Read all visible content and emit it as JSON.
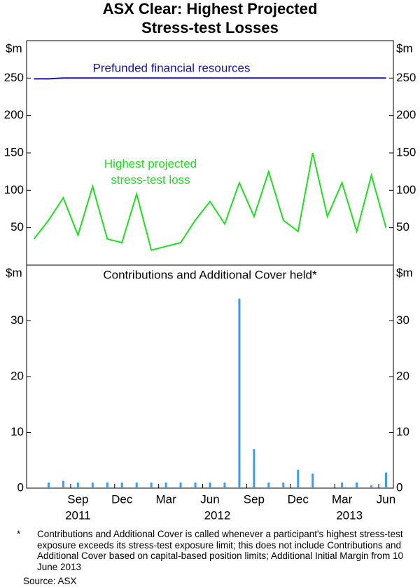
{
  "title": "ASX Clear: Highest Projected Stress-test Losses",
  "chart_data": [
    {
      "type": "line",
      "y_unit": "$m",
      "x": [
        "2011-06",
        "2011-07",
        "2011-08",
        "2011-09",
        "2011-10",
        "2011-11",
        "2011-12",
        "2012-01",
        "2012-02",
        "2012-03",
        "2012-04",
        "2012-05",
        "2012-06",
        "2012-07",
        "2012-08",
        "2012-09",
        "2012-10",
        "2012-11",
        "2012-12",
        "2013-01",
        "2013-02",
        "2013-03",
        "2013-04",
        "2013-05",
        "2013-06"
      ],
      "xlim": [
        "2011-06",
        "2013-06"
      ],
      "ylim": [
        0,
        300
      ],
      "yticks": [
        50,
        100,
        150,
        200,
        250
      ],
      "series": [
        {
          "name": "Prefunded financial resources",
          "color": "#1414b4",
          "values": [
            249,
            249,
            250,
            250,
            250,
            250,
            250,
            250,
            250,
            250,
            250,
            250,
            250,
            250,
            250,
            250,
            250,
            250,
            250,
            250,
            250,
            250,
            250,
            250,
            250
          ]
        },
        {
          "name": "Highest projected stress-test loss",
          "color": "#22dd22",
          "values": [
            35,
            60,
            90,
            40,
            105,
            35,
            30,
            95,
            20,
            25,
            30,
            60,
            85,
            55,
            110,
            65,
            125,
            60,
            45,
            150,
            65,
            110,
            45,
            120,
            50
          ]
        }
      ]
    },
    {
      "type": "bar",
      "subtitle": "Contributions and Additional Cover held*",
      "y_unit": "$m",
      "x": [
        "2011-06",
        "2011-07",
        "2011-08",
        "2011-09",
        "2011-10",
        "2011-11",
        "2011-12",
        "2012-01",
        "2012-02",
        "2012-03",
        "2012-04",
        "2012-05",
        "2012-06",
        "2012-07",
        "2012-08",
        "2012-09",
        "2012-10",
        "2012-11",
        "2012-12",
        "2013-01",
        "2013-02",
        "2013-03",
        "2013-04",
        "2013-05",
        "2013-06"
      ],
      "xlim": [
        "2011-06",
        "2013-06"
      ],
      "xticks": [
        {
          "value": "2011-09",
          "label": "Sep"
        },
        {
          "value": "2011-12",
          "label": "Dec"
        },
        {
          "value": "2012-03",
          "label": "Mar"
        },
        {
          "value": "2012-06",
          "label": "Jun"
        },
        {
          "value": "2012-09",
          "label": "Sep"
        },
        {
          "value": "2012-12",
          "label": "Dec"
        },
        {
          "value": "2013-03",
          "label": "Mar"
        },
        {
          "value": "2013-06",
          "label": "Jun"
        }
      ],
      "x_years": [
        2011,
        2012,
        2013
      ],
      "ylim": [
        0,
        40
      ],
      "yticks": [
        0,
        10,
        20,
        30
      ],
      "color": "#3d9bf0",
      "values": [
        0,
        1,
        1.3,
        1,
        1,
        1,
        1,
        1,
        1,
        1,
        1,
        1,
        1,
        1,
        34,
        7,
        1,
        1,
        3.3,
        2.6,
        0,
        1,
        1,
        0.5,
        2.8
      ]
    }
  ],
  "footnote_mark": "*",
  "footnote": "Contributions and Additional Cover is called whenever a participant's highest stress-test exposure exceeds its stress-test exposure limit; this does not include Contributions and Additional Cover based on capital-based position limits; Additional Initial Margin from 10 June 2013",
  "source": "Source: ASX"
}
